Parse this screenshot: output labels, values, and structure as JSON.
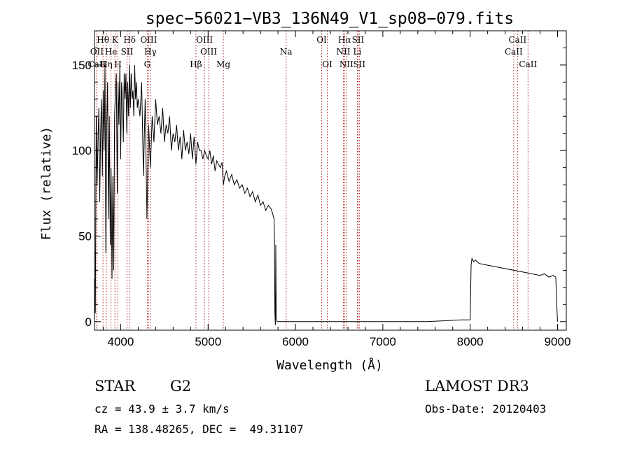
{
  "chart_data": {
    "type": "line",
    "title": "spec−56021−VB3_136N49_V1_sp08−079.fits",
    "xlabel": "Wavelength (Å)",
    "ylabel": "Flux (relative)",
    "xlim": [
      3700,
      9100
    ],
    "ylim": [
      -5,
      170
    ],
    "xticks": [
      4000,
      5000,
      6000,
      7000,
      8000,
      9000
    ],
    "yticks": [
      0,
      50,
      100,
      150
    ],
    "series": [
      {
        "name": "flux",
        "x": [
          3700,
          3705,
          3710,
          3715,
          3720,
          3730,
          3740,
          3750,
          3760,
          3770,
          3780,
          3790,
          3800,
          3810,
          3820,
          3830,
          3840,
          3850,
          3860,
          3870,
          3880,
          3890,
          3900,
          3910,
          3920,
          3930,
          3940,
          3950,
          3960,
          3970,
          3980,
          3990,
          4000,
          4010,
          4020,
          4030,
          4040,
          4050,
          4060,
          4070,
          4080,
          4090,
          4100,
          4110,
          4120,
          4130,
          4140,
          4150,
          4160,
          4170,
          4180,
          4190,
          4200,
          4220,
          4240,
          4260,
          4280,
          4300,
          4320,
          4340,
          4360,
          4380,
          4400,
          4420,
          4440,
          4460,
          4480,
          4500,
          4520,
          4540,
          4560,
          4580,
          4600,
          4620,
          4640,
          4660,
          4680,
          4700,
          4720,
          4740,
          4760,
          4780,
          4800,
          4820,
          4840,
          4861,
          4880,
          4900,
          4920,
          4940,
          4960,
          4980,
          5000,
          5020,
          5040,
          5060,
          5080,
          5100,
          5120,
          5140,
          5160,
          5175,
          5190,
          5210,
          5240,
          5270,
          5300,
          5330,
          5360,
          5390,
          5420,
          5450,
          5480,
          5510,
          5540,
          5570,
          5600,
          5630,
          5660,
          5690,
          5720,
          5740,
          5755,
          5760,
          5765,
          5770,
          5775,
          5780,
          5790,
          5800,
          6000,
          6500,
          7000,
          7500,
          7900,
          8000,
          8010,
          8020,
          8040,
          8060,
          8100,
          8200,
          8300,
          8400,
          8500,
          8600,
          8700,
          8800,
          8850,
          8900,
          8950,
          8980,
          8990,
          9000
        ],
        "y": [
          0,
          25,
          5,
          70,
          120,
          80,
          105,
          125,
          70,
          110,
          130,
          85,
          135,
          100,
          150,
          40,
          115,
          140,
          60,
          120,
          45,
          90,
          25,
          85,
          30,
          120,
          135,
          145,
          75,
          140,
          115,
          150,
          95,
          140,
          130,
          105,
          145,
          130,
          145,
          110,
          140,
          120,
          150,
          125,
          145,
          130,
          135,
          120,
          150,
          130,
          140,
          125,
          130,
          120,
          140,
          85,
          130,
          60,
          115,
          90,
          120,
          105,
          130,
          115,
          120,
          110,
          125,
          105,
          115,
          110,
          120,
          100,
          110,
          105,
          115,
          100,
          108,
          95,
          112,
          100,
          105,
          98,
          110,
          95,
          108,
          92,
          105,
          100,
          100,
          95,
          100,
          97,
          95,
          100,
          92,
          97,
          88,
          94,
          92,
          90,
          93,
          80,
          85,
          88,
          82,
          86,
          80,
          83,
          78,
          80,
          75,
          78,
          73,
          76,
          70,
          74,
          68,
          70,
          65,
          68,
          66,
          63,
          60,
          50,
          5,
          -2,
          45,
          2,
          0,
          0,
          0,
          0,
          0,
          0,
          1,
          1,
          33,
          37,
          35,
          36,
          34,
          33,
          32,
          31,
          30,
          29,
          28,
          27,
          28,
          26,
          27,
          26,
          10,
          0
        ]
      }
    ],
    "lines": [
      {
        "name": "Hθ",
        "wave": 3797,
        "row": 1
      },
      {
        "name": "OII",
        "wave": 3727,
        "row": 2
      },
      {
        "name": "CaII",
        "wave": 3727,
        "row": 3
      },
      {
        "name": "Hη",
        "wave": 3835,
        "row": 3
      },
      {
        "name": "He",
        "wave": 3889,
        "row": 2
      },
      {
        "name": "K",
        "wave": 3934,
        "row": 1
      },
      {
        "name": "H",
        "wave": 3968,
        "row": 3
      },
      {
        "name": "SII",
        "wave": 4072,
        "row": 2
      },
      {
        "name": "Hδ",
        "wave": 4102,
        "row": 1
      },
      {
        "name": "OIII",
        "wave": 4320,
        "row": 1
      },
      {
        "name": "Hγ",
        "wave": 4340,
        "row": 2
      },
      {
        "name": "G",
        "wave": 4304,
        "row": 3
      },
      {
        "name": "Hβ",
        "wave": 4861,
        "row": 3
      },
      {
        "name": "OIII",
        "wave": 4959,
        "row": 1
      },
      {
        "name": "OIII",
        "wave": 5007,
        "row": 2
      },
      {
        "name": "Mg",
        "wave": 5175,
        "row": 3
      },
      {
        "name": "Na",
        "wave": 5893,
        "row": 2
      },
      {
        "name": "OI",
        "wave": 6300,
        "row": 1
      },
      {
        "name": "OI",
        "wave": 6364,
        "row": 3
      },
      {
        "name": "Hα",
        "wave": 6563,
        "row": 1
      },
      {
        "name": "NII",
        "wave": 6548,
        "row": 2
      },
      {
        "name": "NII",
        "wave": 6583,
        "row": 3
      },
      {
        "name": "SII",
        "wave": 6716,
        "row": 1
      },
      {
        "name": "Li",
        "wave": 6708,
        "row": 2
      },
      {
        "name": "SII",
        "wave": 6731,
        "row": 3
      },
      {
        "name": "CaII",
        "wave": 8542,
        "row": 1
      },
      {
        "name": "CaII",
        "wave": 8498,
        "row": 2
      },
      {
        "name": "CaII",
        "wave": 8662,
        "row": 3
      }
    ]
  },
  "info": {
    "class": "STAR",
    "subclass": "G2",
    "survey": "LAMOST DR3",
    "cz": "cz = 43.9 ± 3.7 km/s",
    "obsdate": "Obs-Date: 20120403",
    "radec": "RA = 138.48265, DEC =  49.31107"
  }
}
